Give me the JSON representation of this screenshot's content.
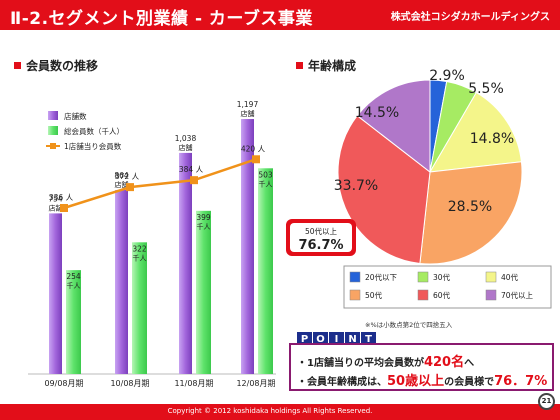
{
  "header": {
    "title": "Ⅱ-2.セグメント別業績 - カーブス事業",
    "company": "株式会社コシダカホールディングス"
  },
  "colors": {
    "brand_red": "#e20e19",
    "bar_stores": "#a266dc",
    "bar_members": "#5fe36b",
    "line_avg": "#f0921a",
    "point_badge": "#1c2e8c"
  },
  "member_section": {
    "title": "会員数の推移"
  },
  "age_section": {
    "title": "年齢構成"
  },
  "chart_data": [
    {
      "type": "bar",
      "title": "会員数の推移",
      "categories": [
        "09/08月期",
        "10/08月期",
        "11/08月期",
        "12/08月期"
      ],
      "series": [
        {
          "name": "店舗数",
          "values": [
            754,
            864,
            1038,
            1197
          ],
          "labels": [
            "754",
            "864",
            "1,038",
            "1,197"
          ],
          "unit": "店舗"
        },
        {
          "name": "総会員数（千人）",
          "values": [
            254,
            322,
            399,
            503
          ],
          "labels": [
            "254",
            "322",
            "399",
            "503"
          ],
          "unit": "千人"
        },
        {
          "name": "1店舗当り会員数",
          "type": "line",
          "values": [
            336,
            372,
            384,
            420
          ],
          "labels": [
            "336",
            "372",
            "384",
            "420"
          ],
          "unit": "人"
        }
      ]
    },
    {
      "type": "pie",
      "title": "年齢構成",
      "slices": [
        {
          "label": "20代以下",
          "value": 2.9,
          "color": "#2563d9"
        },
        {
          "label": "30代",
          "value": 5.5,
          "color": "#a6eb63"
        },
        {
          "label": "40代",
          "value": 14.8,
          "color": "#f4f58a"
        },
        {
          "label": "50代",
          "value": 28.5,
          "color": "#f9a464"
        },
        {
          "label": "60代",
          "value": 33.7,
          "color": "#f0595a"
        },
        {
          "label": "70代以上",
          "value": 14.5,
          "color": "#b077c9"
        }
      ],
      "slice_labels": [
        "2.9%",
        "5.5%",
        "14.8%",
        "28.5%",
        "33.7%",
        "14.5%"
      ],
      "callout": {
        "label": "50代以上",
        "value": "76.7%"
      },
      "note": "※%は小数点第2位で四捨五入"
    }
  ],
  "point": {
    "badge_letters": [
      "P",
      "O",
      "I",
      "N",
      "T"
    ],
    "line1": {
      "prefix": "・1店舗当りの平均会員数が",
      "highlight": "420名",
      "suffix": "へ"
    },
    "line2": {
      "prefix": "・会員年齢構成は、",
      "highlight": "50歳以上",
      "middle": "の会員様で",
      "highlight2": "76．7%"
    }
  },
  "footer": {
    "text": "Copyright © 2012 koshidaka holdings All Rights Reserved."
  },
  "page_number": "21"
}
